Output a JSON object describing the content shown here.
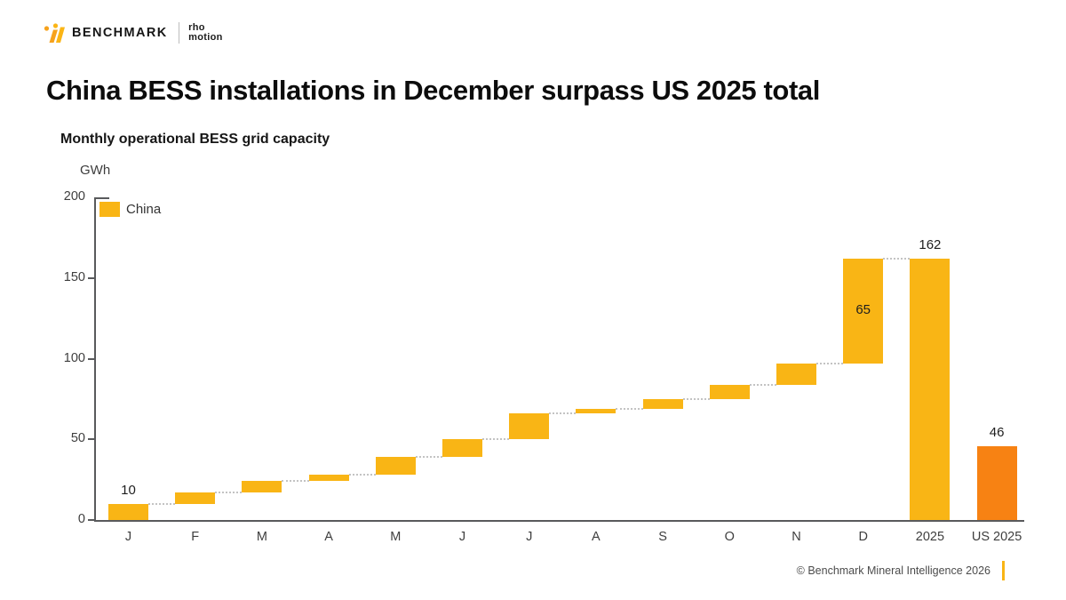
{
  "header": {
    "brand": "BENCHMARK",
    "partner_line1": "rho",
    "partner_line2": "motion"
  },
  "title": "China BESS installations in December surpass US 2025 total",
  "chart_data": {
    "type": "waterfall",
    "title": "Monthly operational BESS grid capacity",
    "unit": "GWh",
    "ylim": [
      0,
      200
    ],
    "yticks": [
      0,
      50,
      100,
      150,
      200
    ],
    "grid": false,
    "legend": {
      "position": "top-left-inside",
      "entries": [
        {
          "label": "China",
          "color": "#F9B515"
        }
      ]
    },
    "series_colors": {
      "China": "#F9B515",
      "US": "#F78213"
    },
    "bars": [
      {
        "category": "J",
        "start": 0,
        "end": 10,
        "color": "#F9B515",
        "value_label": "10",
        "value_label_pos": "above",
        "connect_to_next": true
      },
      {
        "category": "F",
        "start": 10,
        "end": 17,
        "color": "#F9B515",
        "connect_to_next": true
      },
      {
        "category": "M",
        "start": 17,
        "end": 24,
        "color": "#F9B515",
        "connect_to_next": true
      },
      {
        "category": "A",
        "start": 24,
        "end": 28,
        "color": "#F9B515",
        "connect_to_next": true
      },
      {
        "category": "M",
        "start": 28,
        "end": 39,
        "color": "#F9B515",
        "connect_to_next": true
      },
      {
        "category": "J",
        "start": 39,
        "end": 50,
        "color": "#F9B515",
        "connect_to_next": true
      },
      {
        "category": "J",
        "start": 50,
        "end": 66,
        "color": "#F9B515",
        "connect_to_next": true
      },
      {
        "category": "A",
        "start": 66,
        "end": 69,
        "color": "#F9B515",
        "connect_to_next": true
      },
      {
        "category": "S",
        "start": 69,
        "end": 75,
        "color": "#F9B515",
        "connect_to_next": true
      },
      {
        "category": "O",
        "start": 75,
        "end": 84,
        "color": "#F9B515",
        "connect_to_next": true
      },
      {
        "category": "N",
        "start": 84,
        "end": 97,
        "color": "#F9B515",
        "connect_to_next": true
      },
      {
        "category": "D",
        "start": 97,
        "end": 162,
        "color": "#F9B515",
        "value_label": "65",
        "value_label_pos": "inside",
        "connect_to_next": true
      },
      {
        "category": "2025",
        "start": 0,
        "end": 162,
        "color": "#F9B515",
        "value_label": "162",
        "value_label_pos": "above",
        "connect_to_next": false
      },
      {
        "category": "US 2025",
        "start": 0,
        "end": 46,
        "color": "#F78213",
        "value_label": "46",
        "value_label_pos": "above",
        "connect_to_next": false
      }
    ]
  },
  "footer": {
    "copyright": "© Benchmark Mineral Intelligence 2026",
    "accent_color": "#F9B515"
  }
}
